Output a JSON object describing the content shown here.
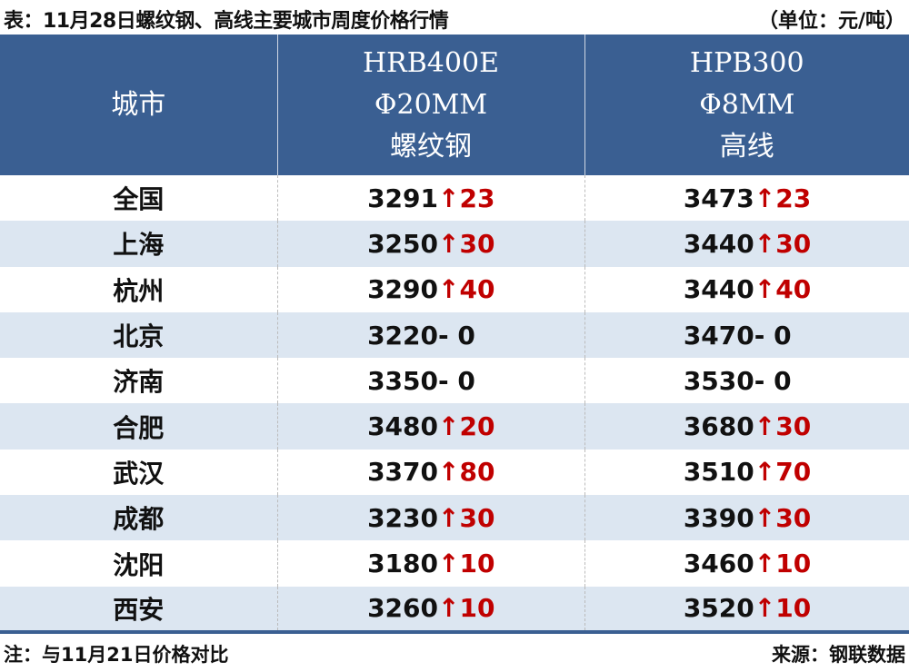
{
  "title": "表：11月28日螺纹钢、高线主要城市周度价格行情",
  "unit": "（单位：元/吨）",
  "colors": {
    "header_bg": "#3a5f92",
    "alt_row": "#dce6f1",
    "up": "#c00000"
  },
  "table": {
    "headers": [
      {
        "lines": [
          "城市"
        ]
      },
      {
        "lines": [
          "HRB400E",
          "Φ20MM",
          "螺纹钢"
        ]
      },
      {
        "lines": [
          "HPB300",
          "Φ8MM",
          "高线"
        ]
      }
    ],
    "rows": [
      {
        "city": "全国",
        "rebar": "3291",
        "rebar_chg": "↑23",
        "wire": "3473",
        "wire_chg": "↑23"
      },
      {
        "city": "上海",
        "rebar": "3250",
        "rebar_chg": "↑30",
        "wire": "3440",
        "wire_chg": "↑30"
      },
      {
        "city": "杭州",
        "rebar": "3290",
        "rebar_chg": "↑40",
        "wire": "3440",
        "wire_chg": "↑40"
      },
      {
        "city": "北京",
        "rebar": "3220",
        "rebar_chg": "- 0",
        "wire": "3470",
        "wire_chg": "- 0"
      },
      {
        "city": "济南",
        "rebar": "3350",
        "rebar_chg": "- 0",
        "wire": "3530",
        "wire_chg": "- 0"
      },
      {
        "city": "合肥",
        "rebar": "3480",
        "rebar_chg": "↑20",
        "wire": "3680",
        "wire_chg": "↑30"
      },
      {
        "city": "武汉",
        "rebar": "3370",
        "rebar_chg": "↑80",
        "wire": "3510",
        "wire_chg": "↑70"
      },
      {
        "city": "成都",
        "rebar": "3230",
        "rebar_chg": "↑30",
        "wire": "3390",
        "wire_chg": "↑30"
      },
      {
        "city": "沈阳",
        "rebar": "3180",
        "rebar_chg": "↑10",
        "wire": "3460",
        "wire_chg": "↑10"
      },
      {
        "city": "西安",
        "rebar": "3260",
        "rebar_chg": "↑10",
        "wire": "3520",
        "wire_chg": "↑10"
      }
    ]
  },
  "footnote": "注：与11月21日价格对比",
  "source": "来源：钢联数据"
}
